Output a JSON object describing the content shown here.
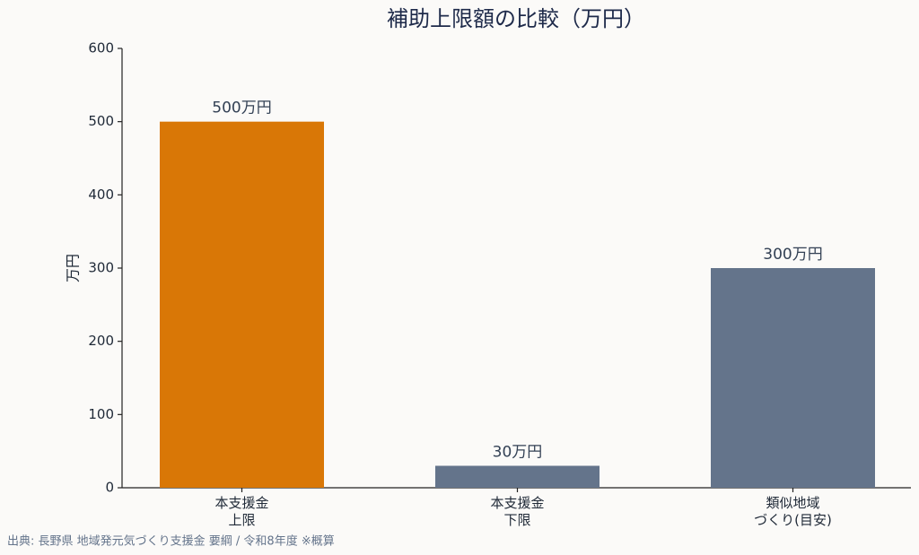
{
  "chart_data": {
    "type": "bar",
    "title": "補助上限額の比較（万円）",
    "y_label": "万円",
    "categories": [
      [
        "本支援金",
        "上限"
      ],
      [
        "本支援金",
        "下限"
      ],
      [
        "類似地域",
        "づくり(目安)"
      ]
    ],
    "values": [
      500,
      30,
      300
    ],
    "value_labels": [
      "500万円",
      "30万円",
      "300万円"
    ],
    "colors": [
      "#d97706",
      "#64748b",
      "#64748b"
    ],
    "ylim": [
      0,
      600
    ],
    "yticks": [
      0,
      100,
      200,
      300,
      400,
      500,
      600
    ],
    "grid": false,
    "source": "出典: 長野県 地域発元気づくり支援金 要綱 / 令和8年度 ※概算"
  }
}
